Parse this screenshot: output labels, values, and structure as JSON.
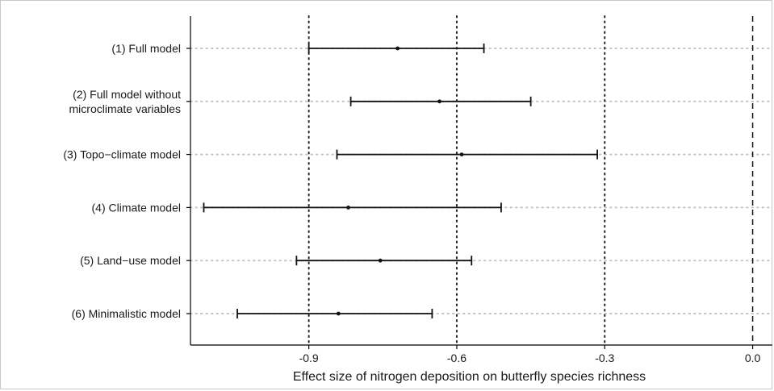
{
  "chart_data": {
    "type": "forest",
    "title": "",
    "xlabel": "Effect size of nitrogen deposition on butterfly species richness",
    "ylabel": "",
    "xlim": [
      -1.14,
      0.04
    ],
    "xticks": [
      -0.9,
      -0.6,
      -0.3,
      0.0
    ],
    "xtick_labels": [
      "-0.9",
      "-0.6",
      "-0.3",
      "0.0"
    ],
    "reference_lines": {
      "dashed": [
        0.0
      ],
      "dotted": [
        -0.9,
        -0.6,
        -0.3
      ]
    },
    "horizontal_grid": "dotted",
    "models": [
      {
        "label": [
          "(1) Full model"
        ],
        "estimate": -0.72,
        "lower": -0.9,
        "upper": -0.545
      },
      {
        "label": [
          "(2) Full model without",
          "microclimate variables"
        ],
        "estimate": -0.635,
        "lower": -0.815,
        "upper": -0.45
      },
      {
        "label": [
          "(3) Topo−climate model"
        ],
        "estimate": -0.59,
        "lower": -0.843,
        "upper": -0.315
      },
      {
        "label": [
          "(4) Climate model"
        ],
        "estimate": -0.82,
        "lower": -1.113,
        "upper": -0.51
      },
      {
        "label": [
          "(5) Land−use model"
        ],
        "estimate": -0.755,
        "lower": -0.925,
        "upper": -0.57
      },
      {
        "label": [
          "(6) Minimalistic model"
        ],
        "estimate": -0.84,
        "lower": -1.045,
        "upper": -0.65
      }
    ]
  }
}
